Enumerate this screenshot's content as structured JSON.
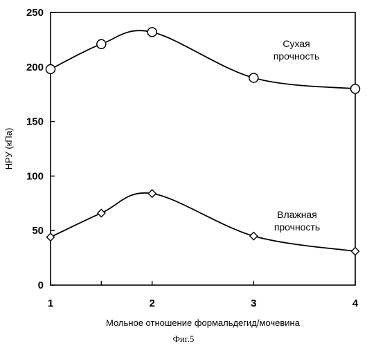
{
  "chart_data": {
    "type": "line",
    "title": "",
    "xlabel": "Мольное отношение формальдегид/мочевина",
    "ylabel": "НРУ (кПа)",
    "xlim": [
      1,
      4
    ],
    "ylim": [
      0,
      250
    ],
    "x_ticks": [
      "1",
      "2",
      "3",
      "4"
    ],
    "y_ticks": [
      "0",
      "50",
      "100",
      "150",
      "200",
      "250"
    ],
    "grid": false,
    "series": [
      {
        "name": "Сухая прочность",
        "marker": "circle",
        "x": [
          1,
          1.5,
          2,
          3,
          4
        ],
        "y": [
          198,
          221,
          232,
          190,
          180
        ]
      },
      {
        "name": "Влажная прочность",
        "marker": "diamond",
        "x": [
          1,
          1.5,
          2,
          3,
          4
        ],
        "y": [
          44,
          66,
          84,
          45,
          31
        ]
      }
    ],
    "annotations": [
      {
        "lines": [
          "Сухая",
          "прочность"
        ]
      },
      {
        "lines": [
          "Влажная",
          "прочность"
        ]
      }
    ],
    "caption": "Фиг.5",
    "colors": {
      "line": "#000000",
      "marker_fill": "#ffffff"
    }
  }
}
